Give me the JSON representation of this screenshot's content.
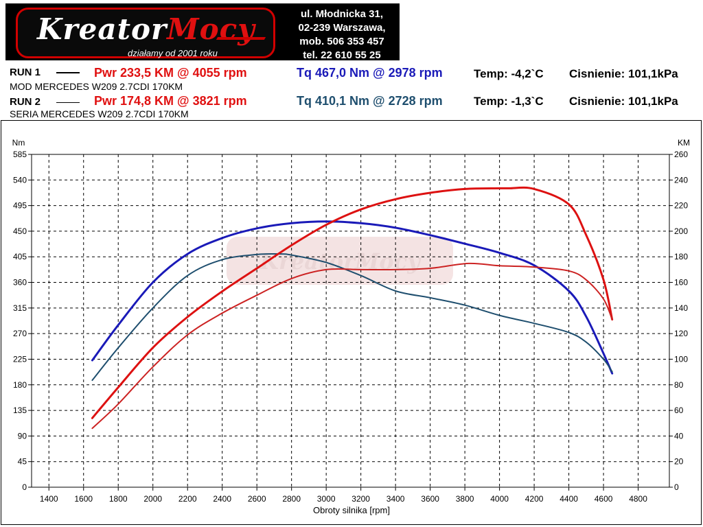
{
  "logo": {
    "brand_a": "Kreator",
    "brand_b": "Mocy",
    "tagline": "działamy od 2001 roku"
  },
  "address": {
    "line1": "ul. Młodnicka 31,",
    "line2": "02-239  Warszawa,",
    "line3": "mob.  506 353 457",
    "line4": "tel.  22 610 55 25"
  },
  "runs": [
    {
      "label": "RUN 1",
      "pwr": "Pwr  233,5 KM @ 4055 rpm",
      "tq": "Tq 467,0 Nm @ 2978 rpm",
      "temp": "Temp: -4,2`C",
      "pressure": "Cisnienie: 101,1kPa",
      "desc": "MOD MERCEDES W209 2.7CDI 170KM"
    },
    {
      "label": "RUN 2",
      "pwr": "Pwr  174,8 KM @ 3821 rpm",
      "tq": "Tq 410,1 Nm @ 2728 rpm",
      "temp": "Temp: -1,3`C",
      "pressure": "Cisnienie: 101,1kPa",
      "desc": "SERIA MERCEDES W209 2.7CDI 170KM"
    }
  ],
  "colors": {
    "pwr_run1": "#dd1111",
    "pwr_run2": "#cc2222",
    "tq_run1": "#1a1ab8",
    "tq_run2": "#1e4e6e",
    "pwr_text": "#e01010",
    "tq_text_1": "#1a1ab8",
    "tq_text_2": "#1e4e6e"
  },
  "chart_data": {
    "type": "line",
    "xlabel": "Obroty silnika [rpm]",
    "ylabel_left": "Nm",
    "ylabel_right": "KM",
    "xlim": [
      1300,
      4980
    ],
    "ylim_left": [
      0,
      585
    ],
    "ylim_right": [
      0,
      260
    ],
    "x_ticks": [
      1400,
      1600,
      1800,
      2000,
      2200,
      2400,
      2600,
      2800,
      3000,
      3200,
      3400,
      3600,
      3800,
      4000,
      4200,
      4400,
      4600,
      4800
    ],
    "y_ticks_left": [
      0,
      45,
      90,
      135,
      180,
      225,
      270,
      315,
      360,
      405,
      450,
      495,
      540,
      585
    ],
    "y_ticks_right": [
      0,
      20,
      40,
      60,
      80,
      100,
      120,
      140,
      160,
      180,
      200,
      220,
      240,
      260
    ],
    "grid": true,
    "series": [
      {
        "axis": "left",
        "color_key": "tq_run1",
        "width": 3,
        "x": [
          1650,
          1800,
          2000,
          2200,
          2400,
          2600,
          2800,
          3000,
          3200,
          3400,
          3600,
          3800,
          4000,
          4200,
          4400,
          4500,
          4600,
          4650
        ],
        "y": [
          223,
          285,
          360,
          410,
          438,
          455,
          464,
          467,
          464,
          456,
          443,
          428,
          412,
          390,
          345,
          300,
          235,
          200
        ]
      },
      {
        "axis": "left",
        "color_key": "tq_run2",
        "width": 2,
        "x": [
          1650,
          1800,
          2000,
          2200,
          2400,
          2600,
          2728,
          2800,
          3000,
          3200,
          3400,
          3600,
          3800,
          4000,
          4200,
          4400,
          4500,
          4600,
          4650
        ],
        "y": [
          188,
          245,
          315,
          372,
          400,
          409,
          410,
          408,
          395,
          372,
          345,
          333,
          320,
          302,
          288,
          272,
          255,
          225,
          203
        ]
      },
      {
        "axis": "right",
        "color_key": "pwr_run1",
        "width": 3,
        "x": [
          1650,
          1800,
          2000,
          2200,
          2400,
          2600,
          2800,
          3000,
          3200,
          3400,
          3600,
          3800,
          4000,
          4055,
          4200,
          4400,
          4500,
          4600,
          4650
        ],
        "y": [
          54,
          78,
          109,
          133,
          153,
          171,
          189,
          205,
          217,
          225,
          230,
          233,
          233.5,
          233.5,
          233,
          221,
          197,
          162,
          131
        ]
      },
      {
        "axis": "right",
        "color_key": "pwr_run2",
        "width": 2,
        "x": [
          1650,
          1800,
          2000,
          2200,
          2400,
          2600,
          2800,
          3000,
          3200,
          3400,
          3600,
          3821,
          4000,
          4200,
          4400,
          4500,
          4600,
          4650
        ],
        "y": [
          46,
          65,
          94,
          119,
          136,
          150,
          163,
          170,
          170,
          170,
          171,
          174.8,
          173,
          172,
          169,
          162,
          147,
          131
        ]
      }
    ]
  }
}
